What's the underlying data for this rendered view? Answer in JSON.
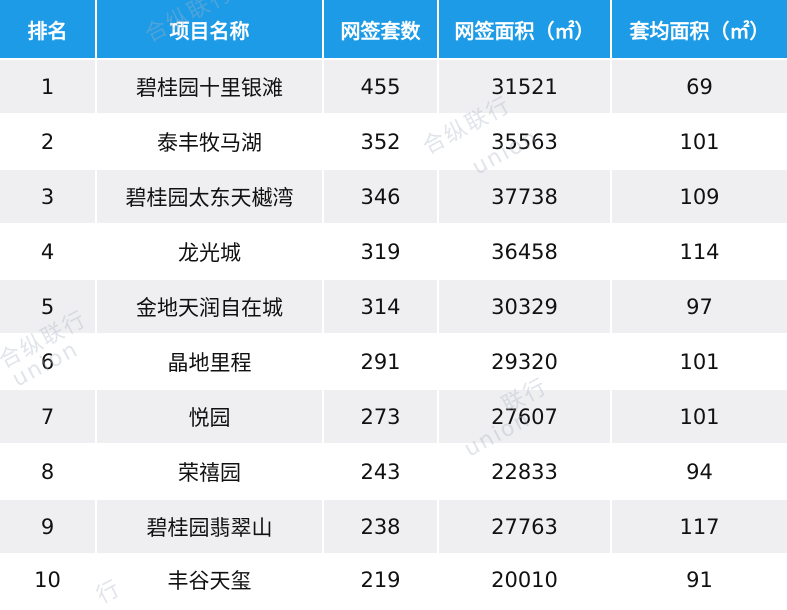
{
  "table": {
    "headers": [
      "排名",
      "项目名称",
      "网签套数",
      "网签面积（㎡）",
      "套均面积（㎡）"
    ],
    "rows": [
      [
        "1",
        "碧桂园十里银滩",
        "455",
        "31521",
        "69"
      ],
      [
        "2",
        "泰丰牧马湖",
        "352",
        "35563",
        "101"
      ],
      [
        "3",
        "碧桂园太东天樾湾",
        "346",
        "37738",
        "109"
      ],
      [
        "4",
        "龙光城",
        "319",
        "36458",
        "114"
      ],
      [
        "5",
        "金地天润自在城",
        "314",
        "30329",
        "97"
      ],
      [
        "6",
        "晶地里程",
        "291",
        "29320",
        "101"
      ],
      [
        "7",
        "悦园",
        "273",
        "27607",
        "101"
      ],
      [
        "8",
        "荣禧园",
        "243",
        "22833",
        "94"
      ],
      [
        "9",
        "碧桂园翡翠山",
        "238",
        "27763",
        "117"
      ],
      [
        "10",
        "丰谷天玺",
        "219",
        "20010",
        "91"
      ]
    ]
  },
  "watermarks": [
    "合纵联行",
    "union",
    "合纵联行",
    "union",
    "联行",
    "union",
    "合纵联行",
    "行"
  ],
  "colors": {
    "header_bg": "#1d9be6",
    "header_text": "#ffffff",
    "row_odd_bg": "#efeff1",
    "row_even_bg": "#ffffff"
  }
}
